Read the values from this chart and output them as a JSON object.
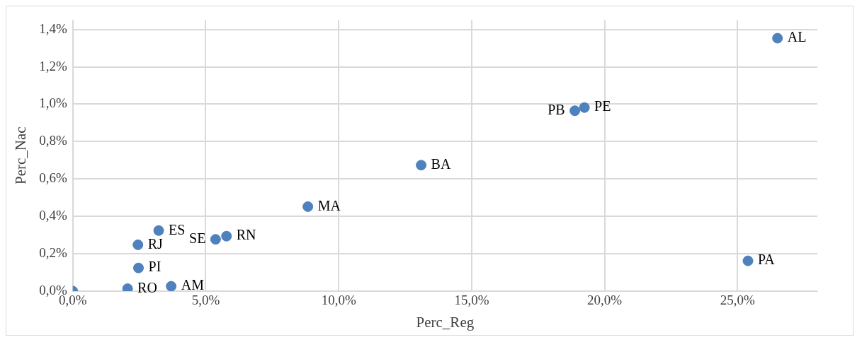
{
  "chart_data": {
    "type": "scatter",
    "xlabel": "Perc_Reg",
    "ylabel": "Perc_Nac",
    "series": [
      {
        "color": "#4f81bd",
        "x": [
          26.5,
          19.24,
          18.88,
          13.1,
          8.84,
          25.39,
          3.23,
          5.78,
          5.37,
          2.45,
          2.47,
          2.06,
          3.7,
          0
        ],
        "values": [
          1.353,
          0.982,
          0.965,
          0.674,
          0.452,
          0.162,
          0.324,
          0.294,
          0.277,
          0.248,
          0.124,
          0.013,
          0.026,
          0
        ],
        "value_labels": [
          "AL",
          "PE",
          "PB",
          "BA",
          "MA",
          "PA",
          "ES",
          "RN",
          "SE",
          "RJ",
          "PI",
          "RO",
          "AM",
          null
        ]
      }
    ],
    "xlim": [
      0,
      28
    ],
    "ylim": [
      0,
      1.45
    ],
    "xticks": [
      {
        "value": 0,
        "label": "0,0%"
      },
      {
        "value": 5,
        "label": "5,0%"
      },
      {
        "value": 10,
        "label": "10,0%"
      },
      {
        "value": 15,
        "label": "15,0%"
      },
      {
        "value": 20,
        "label": "20,0%"
      },
      {
        "value": 25,
        "label": "25,0%"
      }
    ],
    "yticks": [
      {
        "value": 0,
        "label": "0,0%"
      },
      {
        "value": 0.2,
        "label": "0,2%"
      },
      {
        "value": 0.4,
        "label": "0,4%"
      },
      {
        "value": 0.6,
        "label": "0,6%"
      },
      {
        "value": 0.8,
        "label": "0,8%"
      },
      {
        "value": 1,
        "label": "1,0%"
      },
      {
        "value": 1.2,
        "label": "1,2%"
      },
      {
        "value": 1.4,
        "label": "1,4%"
      }
    ],
    "grid": true,
    "legend": false,
    "marker": "circle"
  }
}
